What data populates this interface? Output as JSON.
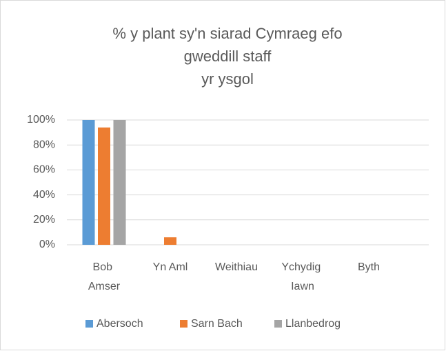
{
  "chart_data": {
    "type": "bar",
    "title": [
      "% y plant sy'n siarad Cymraeg efo",
      "gweddill staff",
      "yr ysgol"
    ],
    "categories": [
      "Bob Amser",
      "Yn Aml",
      "Weithiau",
      "Ychydig Iawn",
      "Byth"
    ],
    "series": [
      {
        "name": "Abersoch",
        "color": "#5b9bd5",
        "values": [
          100,
          0,
          0,
          0,
          0
        ]
      },
      {
        "name": "Sarn Bach",
        "color": "#ed7d31",
        "values": [
          94,
          6,
          0,
          0,
          0
        ]
      },
      {
        "name": "Llanbedrog",
        "color": "#a5a5a5",
        "values": [
          100,
          0,
          0,
          0,
          0
        ]
      }
    ],
    "ylim": [
      0,
      100
    ],
    "yticks": [
      {
        "value": 0,
        "label": "0%"
      },
      {
        "value": 20,
        "label": "20%"
      },
      {
        "value": 40,
        "label": "40%"
      },
      {
        "value": 60,
        "label": "60%"
      },
      {
        "value": 80,
        "label": "80%"
      },
      {
        "value": 100,
        "label": "100%"
      }
    ],
    "grid": true,
    "legend": "bottom"
  }
}
